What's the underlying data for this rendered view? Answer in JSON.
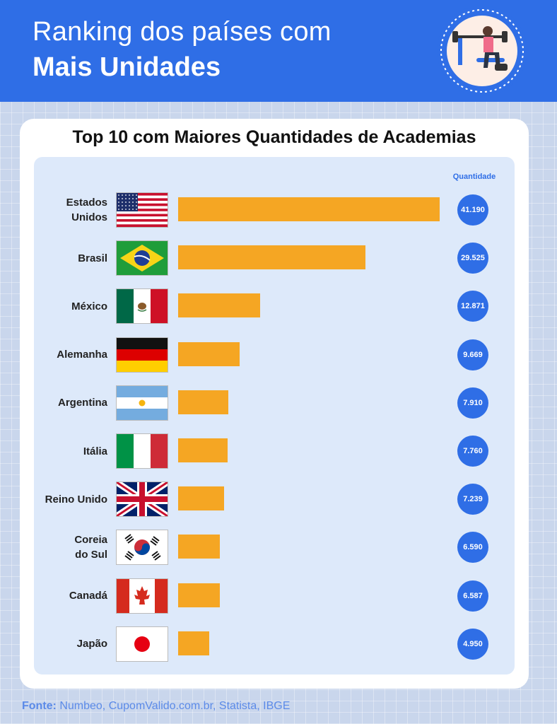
{
  "header": {
    "title_line1": "Ranking dos países com",
    "title_line2": "Mais Unidades"
  },
  "card": {
    "title": "Top 10 com Maiores Quantidades de Academias",
    "quantity_header": "Quantidade"
  },
  "source": {
    "label": "Fonte:",
    "text": " Numbeo, CupomValido.com.br, Statista, IBGE"
  },
  "colors": {
    "accent": "#2f6ee6",
    "bar": "#f5a623",
    "panel": "#dde9fa"
  },
  "chart_data": {
    "type": "bar",
    "orientation": "horizontal",
    "title": "Top 10 com Maiores Quantidades de Academias",
    "value_label_header": "Quantidade",
    "categories": [
      "Estados Unidos",
      "Brasil",
      "México",
      "Alemanha",
      "Argentina",
      "Itália",
      "Reino Unido",
      "Coreia do Sul",
      "Canadá",
      "Japão"
    ],
    "label_lines": [
      [
        "Estados",
        "Unidos"
      ],
      [
        "Brasil"
      ],
      [
        "México"
      ],
      [
        "Alemanha"
      ],
      [
        "Argentina"
      ],
      [
        "Itália"
      ],
      [
        "Reino Unido"
      ],
      [
        "Coreia",
        "do Sul"
      ],
      [
        "Canadá"
      ],
      [
        "Japão"
      ]
    ],
    "flags": [
      "us-flag",
      "brazil-flag",
      "mexico-flag",
      "germany-flag",
      "argentina-flag",
      "italy-flag",
      "uk-flag",
      "south-korea-flag",
      "canada-flag",
      "japan-flag"
    ],
    "values": [
      41190,
      29525,
      12871,
      9669,
      7910,
      7760,
      7239,
      6590,
      6587,
      4950
    ],
    "value_labels": [
      "41.190",
      "29.525",
      "12.871",
      "9.669",
      "7.910",
      "7.760",
      "7.239",
      "6.590",
      "6.587",
      "4.950"
    ]
  }
}
